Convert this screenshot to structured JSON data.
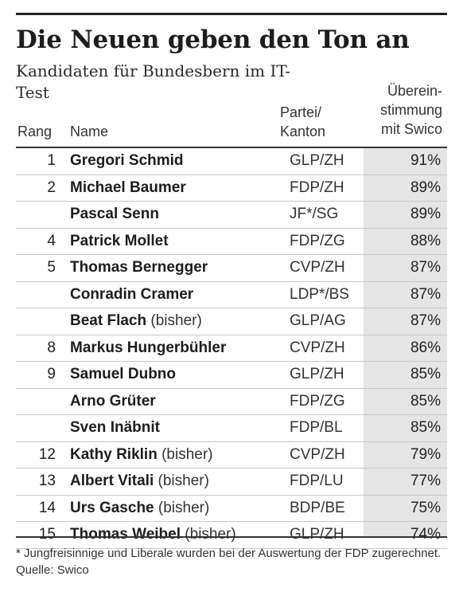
{
  "title": "Die Neuen geben den Ton an",
  "subtitle": "Kandidaten für Bundesbern im IT-Test",
  "headers": {
    "rang": "Rang",
    "name": "Name",
    "partei_line1": "Partei/",
    "partei_line2": "Kanton",
    "match_line1": "Überein-",
    "match_line2": "stimmung",
    "match_line3": "mit Swico"
  },
  "footnote": "* Jungfreisinnige und Liberale wurden bei der Auswertung der FDP zugerechnet. Quelle: Swico",
  "chart_data": {
    "type": "table",
    "columns": [
      "Rang",
      "Name",
      "Partei/Kanton",
      "Übereinstimmung mit Swico"
    ],
    "rows": [
      {
        "rang": "1",
        "name": "Gregori Schmid",
        "extra": "",
        "partei": "GLP/ZH",
        "match": "91%"
      },
      {
        "rang": "2",
        "name": "Michael Baumer",
        "extra": "",
        "partei": "FDP/ZH",
        "match": "89%"
      },
      {
        "rang": "",
        "name": "Pascal Senn",
        "extra": "",
        "partei": "JF*/SG",
        "match": "89%"
      },
      {
        "rang": "4",
        "name": "Patrick Mollet",
        "extra": "",
        "partei": "FDP/ZG",
        "match": "88%"
      },
      {
        "rang": "5",
        "name": "Thomas Bernegger",
        "extra": "",
        "partei": "CVP/ZH",
        "match": "87%"
      },
      {
        "rang": "",
        "name": "Conradin Cramer",
        "extra": "",
        "partei": "LDP*/BS",
        "match": "87%"
      },
      {
        "rang": "",
        "name": "Beat Flach",
        "extra": "(bisher)",
        "partei": "GLP/AG",
        "match": "87%"
      },
      {
        "rang": "8",
        "name": "Markus Hungerbühler",
        "extra": "",
        "partei": "CVP/ZH",
        "match": "86%"
      },
      {
        "rang": "9",
        "name": "Samuel Dubno",
        "extra": "",
        "partei": "GLP/ZH",
        "match": "85%"
      },
      {
        "rang": "",
        "name": "Arno Grüter",
        "extra": "",
        "partei": "FDP/ZG",
        "match": "85%"
      },
      {
        "rang": "",
        "name": "Sven Inäbnit",
        "extra": "",
        "partei": "FDP/BL",
        "match": "85%"
      },
      {
        "rang": "12",
        "name": "Kathy Riklin",
        "extra": "(bisher)",
        "partei": "CVP/ZH",
        "match": "79%"
      },
      {
        "rang": "13",
        "name": "Albert Vitali",
        "extra": "(bisher)",
        "partei": "FDP/LU",
        "match": "77%"
      },
      {
        "rang": "14",
        "name": "Urs Gasche",
        "extra": "(bisher)",
        "partei": "BDP/BE",
        "match": "75%"
      },
      {
        "rang": "15",
        "name": "Thomas Weibel",
        "extra": "(bisher)",
        "partei": "GLP/ZH",
        "match": "74%"
      }
    ]
  }
}
